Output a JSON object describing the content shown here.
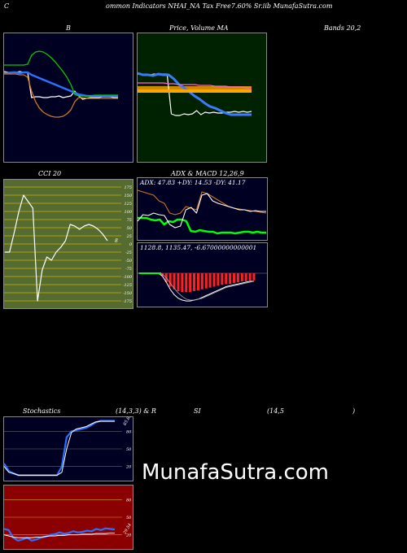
{
  "header": {
    "c_letter": "C",
    "title": "ommon  Indicators NHAI_NA Tax Free7.60% Sr.iib MunafaSutra.com"
  },
  "labels": {
    "bb_b": "B",
    "price_volume_ma": "Price,  Volume  MA",
    "bands": "Bands 20,2",
    "cci": "CCI 20",
    "adx_macd": "ADX  & MACD 12,26,9",
    "stoch": "Stochastics",
    "stoch_params": "(14,3,3) & R",
    "si": "SI",
    "rsi_params": "(14,5",
    "rsi_close": ")"
  },
  "readouts": {
    "adx": "ADX: 47.83  +DY: 14.53  -DY: 41.17",
    "macd": "1128.8,  1135.47,  -6.67000000000001"
  },
  "watermark": "MunafaSutra.com",
  "colors": {
    "bb_bg": "#000022",
    "price_bg": "#002200",
    "cci_bg": "#556b2f",
    "adx_bg": "#000022",
    "stoch_bg": "#000022",
    "rsi_bg": "#8b0000"
  },
  "chart_data": [
    {
      "type": "line",
      "name": "bollinger",
      "series": [
        {
          "color": "#ffffff",
          "values": [
            88,
            89,
            89,
            89,
            88,
            89,
            89,
            120,
            119,
            119,
            120,
            120,
            119,
            119,
            118,
            120,
            119,
            118,
            112,
            118,
            122,
            121,
            120,
            120,
            120,
            119,
            119,
            119,
            120,
            120
          ]
        },
        {
          "color": "#2f6fff",
          "values": [
            90,
            90,
            89,
            89,
            90,
            89,
            89,
            92,
            94,
            96,
            98,
            100,
            102,
            104,
            106,
            108,
            110,
            112,
            114,
            116,
            117,
            118,
            118,
            118,
            118,
            118,
            118,
            118,
            118,
            118
          ]
        },
        {
          "color": "#00cc00",
          "values": [
            80,
            80,
            80,
            80,
            80,
            80,
            79,
            68,
            64,
            63,
            64,
            67,
            71,
            76,
            82,
            88,
            95,
            104,
            116,
            118,
            118,
            118,
            118,
            117,
            117,
            117,
            117,
            117,
            117,
            117
          ]
        },
        {
          "color": "#cc7722",
          "values": [
            91,
            91,
            91,
            91,
            92,
            92,
            95,
            112,
            125,
            133,
            138,
            141,
            143,
            144,
            144,
            143,
            140,
            135,
            125,
            120,
            120,
            121,
            121,
            121,
            121,
            121,
            121,
            121,
            121,
            121
          ]
        }
      ]
    },
    {
      "type": "line",
      "name": "price_ma",
      "series": [
        {
          "color": "#ffffff",
          "values": [
            91,
            92,
            91,
            92,
            91,
            92,
            91,
            91,
            140,
            142,
            142,
            140,
            141,
            140,
            136,
            141,
            138,
            139,
            138,
            139,
            139,
            138,
            138,
            137,
            138,
            137,
            138,
            137
          ]
        },
        {
          "color": "#3a7cff",
          "values": [
            90,
            92,
            92,
            93,
            91,
            92,
            92,
            97,
            104,
            108,
            113,
            118,
            122,
            127,
            131,
            133,
            136,
            139,
            141,
            141,
            141,
            141,
            141
          ]
        },
        {
          "color": "#ff66cc",
          "values": [
            102,
            102,
            102,
            102,
            102,
            102,
            103,
            103,
            104,
            104,
            104,
            104,
            105,
            105,
            105,
            106,
            106,
            106,
            107,
            107,
            107,
            108,
            108
          ]
        },
        {
          "color": "#ffa500",
          "values": [
            112,
            112,
            112,
            112,
            112,
            112,
            112,
            112,
            112,
            112,
            112,
            112,
            112,
            112,
            112,
            112,
            112,
            112,
            112,
            112,
            112,
            112,
            112
          ]
        }
      ]
    },
    {
      "type": "line",
      "name": "cci",
      "ticks": [
        175,
        150,
        125,
        100,
        75,
        50,
        25,
        0,
        -25,
        -50,
        -75,
        -100,
        -125,
        -150,
        -175
      ],
      "values": [
        -25,
        -25,
        35,
        100,
        150,
        130,
        110,
        -175,
        -80,
        -40,
        -50,
        -25,
        -10,
        10,
        60,
        55,
        45,
        55,
        60,
        55,
        45,
        30,
        10
      ],
      "last_label": "8"
    },
    {
      "type": "line",
      "name": "adx",
      "series": [
        {
          "color": "#00ff00",
          "values": [
            268,
            268,
            268,
            270,
            271,
            270,
            276,
            272,
            273,
            270,
            270,
            272,
            284,
            285,
            283,
            284,
            285,
            285,
            287,
            286,
            286,
            286,
            287,
            286,
            285,
            285,
            286,
            285,
            286,
            286
          ]
        },
        {
          "color": "#cc7722",
          "values": [
            234,
            236,
            238,
            240,
            247,
            250,
            262,
            264,
            262,
            254,
            256,
            258,
            236,
            238,
            242,
            246,
            250,
            254,
            256,
            257,
            258,
            259,
            260,
            261,
            262
          ]
        },
        {
          "color": "#ffffff",
          "values": [
            272,
            264,
            265,
            262,
            264,
            265,
            276,
            280,
            278,
            258,
            255,
            262,
            240,
            238,
            247,
            250,
            252,
            254,
            256,
            258,
            258,
            260,
            259,
            260,
            260
          ]
        }
      ]
    },
    {
      "type": "bar",
      "name": "macd",
      "histogram": [
        0,
        0,
        0,
        0,
        0,
        0,
        -3,
        -10,
        -15,
        -18,
        -20,
        -21,
        -21,
        -21,
        -20,
        -19,
        -18,
        -17,
        -16,
        -15,
        -14,
        -13,
        -12,
        -12,
        -11,
        -10,
        -9,
        -9,
        -8,
        -8
      ],
      "macd_line": [
        0,
        0,
        0,
        0,
        0,
        0,
        -3,
        -10,
        -18,
        -24,
        -28,
        -30,
        -31,
        -31,
        -30,
        -29,
        -27,
        -25,
        -23,
        -21,
        -19,
        -17,
        -15,
        -14,
        -13,
        -12,
        -11,
        -10,
        -9,
        -9
      ],
      "signal_line": [
        0,
        0,
        0,
        0,
        0,
        0,
        -1,
        -5,
        -11,
        -17,
        -22,
        -26,
        -29,
        -30,
        -30,
        -29,
        -28,
        -26,
        -24,
        -22,
        -20,
        -18,
        -16,
        -15,
        -14,
        -13,
        -12,
        -11,
        -10,
        -9
      ]
    },
    {
      "type": "line",
      "name": "stochastics",
      "ticks": [
        80,
        50,
        20
      ],
      "series": [
        {
          "color": "#2f6fff",
          "values": [
            25,
            12,
            8,
            5,
            5,
            5,
            5,
            5,
            5,
            5,
            5,
            5,
            20,
            70,
            80,
            82,
            84,
            86,
            90,
            95,
            98,
            98,
            98,
            98
          ]
        },
        {
          "color": "#ffffff",
          "values": [
            20,
            10,
            8,
            5,
            5,
            5,
            5,
            5,
            5,
            5,
            5,
            5,
            10,
            50,
            78,
            84,
            86,
            88,
            92,
            96,
            97,
            97,
            97,
            97
          ]
        }
      ],
      "last_label": "85.83"
    },
    {
      "type": "line",
      "name": "rsi",
      "ticks": [
        80,
        50,
        20
      ],
      "series": [
        {
          "color": "#2f6fff",
          "values": [
            30,
            28,
            15,
            10,
            12,
            15,
            10,
            12,
            15,
            17,
            20,
            21,
            24,
            22,
            23,
            26,
            24,
            25,
            27,
            26,
            30,
            28,
            31,
            30,
            29
          ]
        },
        {
          "color": "#ffffff",
          "values": [
            20,
            18,
            16,
            15,
            15,
            15,
            15,
            16,
            16,
            17,
            18,
            18,
            19,
            19,
            20,
            20,
            20,
            21,
            21,
            21,
            22,
            22,
            22,
            23,
            23
          ]
        }
      ],
      "last_label": "29.54"
    }
  ]
}
